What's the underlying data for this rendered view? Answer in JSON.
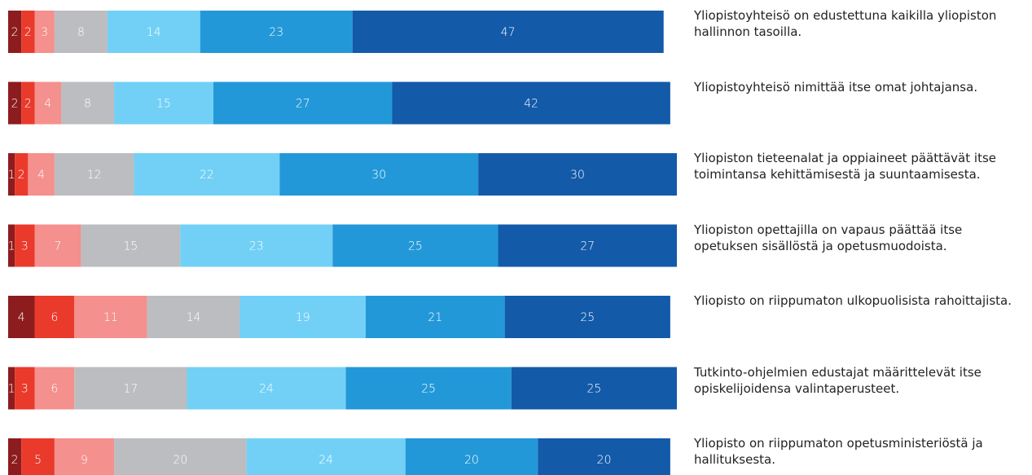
{
  "chart_data": {
    "type": "stacked-bar-horizontal",
    "categories": [
      "Yliopistoyhteisö on edustettuna kaikilla yliopiston hallinnon tasoilla.",
      "Yliopistoyhteisö nimittää itse omat johtajansa.",
      "Yliopiston tieteenalat ja oppiaineet päättävät itse toimintansa kehittämisestä ja suuntaamisesta.",
      "Yliopiston opettajilla on vapaus päättää itse opetuksen sisällöstä ja opetusmuodoista.",
      "Yliopisto on riippumaton ulkopuolisista rahoittajista.",
      "Tutkinto-ohjelmien edustajat määrittelevät itse opiskelijoidensa valintaperusteet.",
      "Yliopisto on riippumaton opetusministeriöstä ja hallituksesta."
    ],
    "series": [
      {
        "color": "#8c1c1e",
        "values": [
          2,
          2,
          1,
          1,
          4,
          1,
          2
        ]
      },
      {
        "color": "#ea3a2c",
        "values": [
          2,
          2,
          2,
          3,
          6,
          3,
          5
        ]
      },
      {
        "color": "#f4908d",
        "values": [
          3,
          4,
          4,
          7,
          11,
          6,
          9
        ]
      },
      {
        "color": "#bcbdc0",
        "values": [
          8,
          8,
          12,
          15,
          14,
          17,
          20
        ]
      },
      {
        "color": "#72d0f6",
        "values": [
          14,
          15,
          22,
          23,
          19,
          24,
          24
        ]
      },
      {
        "color": "#2398d8",
        "values": [
          23,
          27,
          30,
          25,
          21,
          25,
          20
        ]
      },
      {
        "color": "#135aa9",
        "values": [
          47,
          42,
          30,
          27,
          25,
          25,
          20
        ]
      }
    ]
  }
}
